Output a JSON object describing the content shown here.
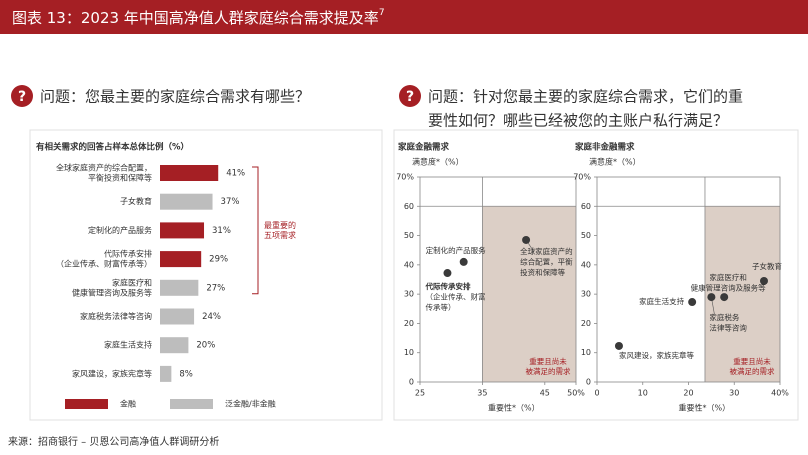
{
  "header": {
    "title": "图表 13：2023 年中国高净值人群家庭综合需求提及率",
    "title_note": "7"
  },
  "question_left": [
    "问题：您最主要的家庭综合需求有哪些？"
  ],
  "question_right": [
    "问题：针对您最主要的家庭综合需求，它们的重",
    "要性如何？哪些已经被您的主账户私行满足？"
  ],
  "source": "来源：招商银行 – 贝恩公司高净值人群调研分析",
  "chart_data": [
    {
      "type": "bar",
      "subtitle": "有相关需求的回答占样本总体比例（%）",
      "categories": [
        [
          "全球家庭资产的综合配置，",
          "平衡投资和保障等"
        ],
        [
          "子女教育"
        ],
        [
          "定制化的产品服务"
        ],
        [
          "代际传承安排",
          "（企业传承、财富传承等）"
        ],
        [
          "家庭医疗和",
          "健康管理咨询及服务等"
        ],
        [
          "家庭税务法律等咨询"
        ],
        [
          "家庭生活支持"
        ],
        [
          "家风建设，家族宪章等"
        ]
      ],
      "values": [
        41,
        37,
        31,
        29,
        27,
        24,
        20,
        8
      ],
      "value_labels": [
        "41%",
        "37%",
        "31%",
        "29%",
        "27%",
        "24%",
        "20%",
        "8%"
      ],
      "colors": [
        "#a51f24",
        "#bdbdbd",
        "#a51f24",
        "#a51f24",
        "#bdbdbd",
        "#bdbdbd",
        "#bdbdbd",
        "#bdbdbd"
      ],
      "xlim": [
        0,
        50
      ],
      "annotation": [
        "最重要的",
        "五项需求"
      ],
      "legend": [
        {
          "name": "金融",
          "color": "#a51f24"
        },
        {
          "name": "泛金融/非金融",
          "color": "#bdbdbd"
        }
      ]
    },
    {
      "type": "scatter",
      "title": "家庭金融需求",
      "ylabel": "满意度*（%）",
      "xlabel": "重要性*（%）",
      "xlim": [
        25,
        50
      ],
      "ylim": [
        0,
        70
      ],
      "xticks": [
        25,
        35,
        45,
        {
          "value": 50,
          "label": "50%"
        }
      ],
      "yticks": [
        0,
        10,
        20,
        30,
        40,
        50,
        60,
        {
          "value": 70,
          "label": "70%"
        }
      ],
      "xsplit": 35,
      "ysplit": 60,
      "zone_label": [
        "重要且尚未",
        "被满足的需求"
      ],
      "series": [
        {
          "color": "#3a3a3a",
          "x": [
            42,
            32,
            29.4
          ],
          "values": [
            48.5,
            41,
            37.2
          ],
          "labels": [
            [
              "全球家庭资产的",
              "综合配置，平衡",
              "投资和保障等"
            ],
            [
              "定制化的产品服务"
            ],
            [
              "代际传承安排",
              "（企业传承、财富",
              "传承等）"
            ]
          ]
        }
      ]
    },
    {
      "type": "scatter",
      "title": "家庭非金融需求",
      "ylabel": "满意度*（%）",
      "xlabel": "重要性*（%）",
      "xlim": [
        0,
        40
      ],
      "ylim": [
        0,
        70
      ],
      "xticks": [
        0,
        10,
        20,
        30,
        {
          "value": 40,
          "label": "40%"
        }
      ],
      "yticks": [
        0,
        10,
        20,
        30,
        40,
        50,
        60,
        {
          "value": 70,
          "label": "70%"
        }
      ],
      "xsplit": 23.6,
      "ysplit": 60,
      "zone_label": [
        "重要且尚未",
        "被满足的需求"
      ],
      "series": [
        {
          "color": "#3a3a3a",
          "x": [
            36.5,
            27.8,
            25,
            20.8,
            4.8
          ],
          "values": [
            34.5,
            29,
            29,
            27.3,
            12.3
          ],
          "labels": [
            [
              "子女教育"
            ],
            [
              "家庭医疗和",
              "健康管理咨询及服务等"
            ],
            [
              "家庭税务",
              "法律等咨询"
            ],
            [
              "家庭生活支持"
            ],
            [
              "家风建设，家族宪章等"
            ]
          ]
        }
      ]
    }
  ]
}
